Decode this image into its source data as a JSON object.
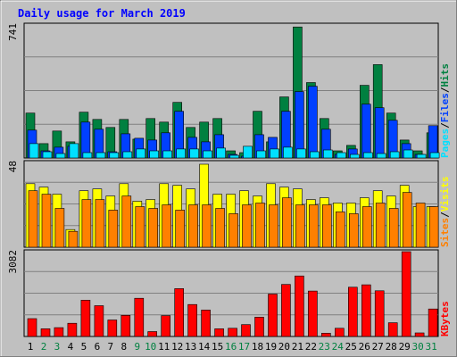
{
  "chart_data": [
    {
      "type": "bar",
      "title": "Daily usage for March 2019",
      "categories": [
        "1",
        "2",
        "3",
        "4",
        "5",
        "6",
        "7",
        "8",
        "9",
        "10",
        "11",
        "12",
        "13",
        "14",
        "15",
        "16",
        "17",
        "18",
        "19",
        "20",
        "21",
        "22",
        "23",
        "24",
        "25",
        "26",
        "27",
        "28",
        "29",
        "30",
        "31"
      ],
      "weekend_days": [
        "2",
        "3",
        "9",
        "10",
        "16",
        "17",
        "23",
        "24",
        "30",
        "31"
      ],
      "ylim": [
        0,
        741
      ],
      "max_label": "741",
      "legend": [
        "Pages",
        "Files",
        "Hits"
      ],
      "legend_separator": "/",
      "series": [
        {
          "name": "Hits",
          "color": "#008040",
          "values": [
            250,
            80,
            150,
            90,
            255,
            215,
            170,
            215,
            105,
            220,
            200,
            310,
            170,
            200,
            220,
            40,
            30,
            260,
            90,
            340,
            730,
            420,
            220,
            40,
            70,
            405,
            520,
            250,
            100,
            40,
            140
          ]
        },
        {
          "name": "Files",
          "color": "#0040ff",
          "values": [
            155,
            40,
            60,
            65,
            200,
            160,
            35,
            135,
            110,
            100,
            140,
            260,
            115,
            90,
            130,
            20,
            10,
            130,
            115,
            260,
            370,
            400,
            160,
            20,
            50,
            300,
            280,
            210,
            80,
            20,
            180
          ]
        },
        {
          "name": "Pages",
          "color": "#00e0ff",
          "values": [
            80,
            35,
            25,
            80,
            30,
            30,
            30,
            35,
            50,
            40,
            40,
            50,
            50,
            40,
            55,
            15,
            65,
            40,
            50,
            60,
            50,
            35,
            45,
            30,
            20,
            30,
            25,
            35,
            45,
            20,
            30
          ]
        }
      ]
    },
    {
      "type": "bar",
      "ylim": [
        0,
        48
      ],
      "max_label": "48",
      "legend": [
        "Sites",
        "Visits"
      ],
      "legend_separator": "/",
      "series": [
        {
          "name": "Visits",
          "color": "#ffff00",
          "values": [
            36,
            34,
            30,
            10,
            32,
            33,
            29,
            36,
            26,
            27,
            36,
            35,
            33,
            47,
            30,
            30,
            32,
            29,
            36,
            34,
            33,
            27,
            28,
            25,
            25,
            28,
            32,
            29,
            35,
            23,
            23
          ]
        },
        {
          "name": "Sites",
          "color": "#ff8000",
          "values": [
            32,
            30,
            22,
            9,
            27,
            27,
            21,
            29,
            23,
            22,
            24,
            21,
            24,
            24,
            22,
            19,
            24,
            25,
            24,
            28,
            24,
            24,
            24,
            20,
            19,
            23,
            25,
            22,
            31,
            25,
            23
          ]
        }
      ]
    },
    {
      "type": "bar",
      "ylim": [
        0,
        3082
      ],
      "max_label": "3082",
      "legend": [
        "KBytes"
      ],
      "series": [
        {
          "name": "KBytes",
          "color": "#ff0000",
          "values": [
            650,
            280,
            320,
            480,
            1320,
            1120,
            600,
            770,
            1390,
            180,
            760,
            1740,
            1160,
            960,
            280,
            300,
            430,
            700,
            1540,
            1890,
            2200,
            1650,
            120,
            300,
            1790,
            1880,
            1660,
            500,
            3082,
            130,
            1000
          ]
        }
      ]
    }
  ],
  "colors": {
    "frame": "#c0c0c0",
    "panel": "#c0c0c0",
    "grid": "#808080",
    "title": "#0000ff",
    "weekday": "#000000",
    "weekend": "#008040",
    "legend_pages": "#00e0ff",
    "legend_files": "#0040ff",
    "legend_hits": "#008040",
    "legend_sites": "#ff8000",
    "legend_visits": "#ffff00",
    "legend_kbytes": "#ff0000"
  }
}
